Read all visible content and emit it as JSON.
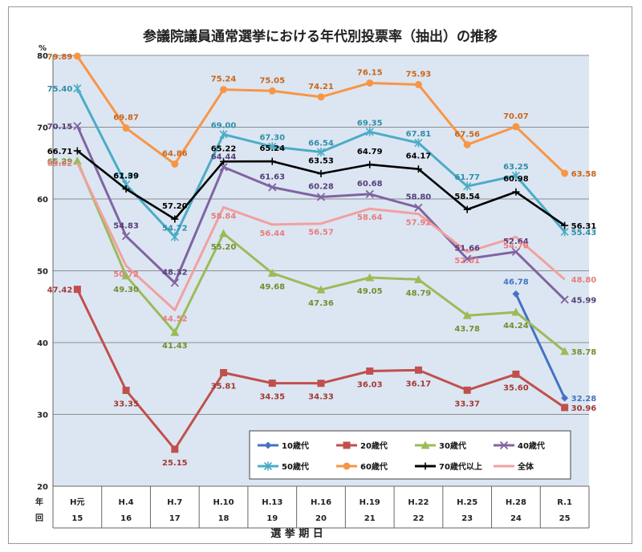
{
  "chart_data": {
    "type": "line",
    "title": "参議院議員通常選挙における年代別投票率（抽出）の推移",
    "ylabel": "%",
    "xlabel": "選 挙 期 日",
    "row_labels": [
      "年",
      "回"
    ],
    "ylim": [
      20,
      80
    ],
    "yticks": [
      "20",
      "30",
      "40",
      "50",
      "60",
      "70",
      "80"
    ],
    "grid": true,
    "legend_position": "bottom-center",
    "categories": [
      "H元",
      "H.4",
      "H.7",
      "H.10",
      "H.13",
      "H.16",
      "H.19",
      "H.22",
      "H.25",
      "H.28",
      "R.1"
    ],
    "rounds": [
      "15",
      "16",
      "17",
      "18",
      "19",
      "20",
      "21",
      "22",
      "23",
      "24",
      "25"
    ],
    "plot_bg": "#dce6f2",
    "series": [
      {
        "name": "10歳代",
        "color": "#4472c4",
        "marker": "diamond",
        "values": [
          null,
          null,
          null,
          null,
          null,
          null,
          null,
          null,
          null,
          46.78,
          32.28
        ],
        "labels": [
          "",
          "",
          "",
          "",
          "",
          "",
          "",
          "",
          "",
          "46.78",
          "32.28"
        ]
      },
      {
        "name": "20歳代",
        "color": "#c0504d",
        "marker": "square",
        "values": [
          47.42,
          33.35,
          25.15,
          35.81,
          34.35,
          34.33,
          36.03,
          36.17,
          33.37,
          35.6,
          30.96
        ],
        "labels": [
          "47.42",
          "33.35",
          "25.15",
          "35.81",
          "34.35",
          "34.33",
          "36.03",
          "36.17",
          "33.37",
          "35.60",
          "30.96"
        ]
      },
      {
        "name": "30歳代",
        "color": "#9bbb59",
        "marker": "triangle",
        "values": [
          65.29,
          49.3,
          41.43,
          55.2,
          49.68,
          47.36,
          49.05,
          48.79,
          43.78,
          44.24,
          38.78
        ],
        "labels": [
          "65.29",
          "49.30",
          "41.43",
          "55.20",
          "49.68",
          "47.36",
          "49.05",
          "48.79",
          "43.78",
          "44.24",
          "38.78"
        ]
      },
      {
        "name": "40歳代",
        "color": "#8064a2",
        "marker": "x",
        "values": [
          70.15,
          54.83,
          48.32,
          64.44,
          61.63,
          60.28,
          60.68,
          58.8,
          51.66,
          52.64,
          45.99
        ],
        "labels": [
          "70.15",
          "54.83",
          "48.32",
          "64.44",
          "61.63",
          "60.28",
          "60.68",
          "58.80",
          "51.66",
          "52.64",
          "45.99"
        ]
      },
      {
        "name": "50歳代",
        "color": "#4bacc6",
        "marker": "star",
        "values": [
          75.4,
          62.0,
          54.72,
          69.0,
          67.3,
          66.54,
          69.35,
          67.81,
          61.77,
          63.25,
          55.43
        ],
        "labels": [
          "75.40",
          "62.00",
          "54.72",
          "69.00",
          "67.30",
          "66.54",
          "69.35",
          "67.81",
          "61.77",
          "63.25",
          "55.43"
        ]
      },
      {
        "name": "60歳代",
        "color": "#f79646",
        "marker": "circle",
        "values": [
          79.89,
          69.87,
          64.86,
          75.24,
          75.05,
          74.21,
          76.15,
          75.93,
          67.56,
          70.07,
          63.58
        ],
        "labels": [
          "79.89",
          "69.87",
          "64.86",
          "75.24",
          "75.05",
          "74.21",
          "76.15",
          "75.93",
          "67.56",
          "70.07",
          "63.58"
        ]
      },
      {
        "name": "70歳代以上",
        "color": "#000000",
        "marker": "plus",
        "values": [
          66.71,
          61.39,
          57.2,
          65.22,
          65.24,
          63.53,
          64.79,
          64.17,
          58.54,
          60.98,
          56.31
        ],
        "labels": [
          "66.71",
          "61.39",
          "57.20",
          "65.22",
          "65.24",
          "63.53",
          "64.79",
          "64.17",
          "58.54",
          "60.98",
          "56.31"
        ]
      },
      {
        "name": "全体",
        "color": "#f2a0a0",
        "marker": "none",
        "values": [
          65.02,
          50.72,
          44.52,
          58.84,
          56.44,
          56.57,
          58.64,
          57.92,
          52.61,
          54.7,
          48.8
        ],
        "labels": [
          "65.02",
          "50.72",
          "44.52",
          "58.84",
          "56.44",
          "56.57",
          "58.64",
          "57.92",
          "52.61",
          "54.70",
          "48.80"
        ]
      }
    ]
  }
}
